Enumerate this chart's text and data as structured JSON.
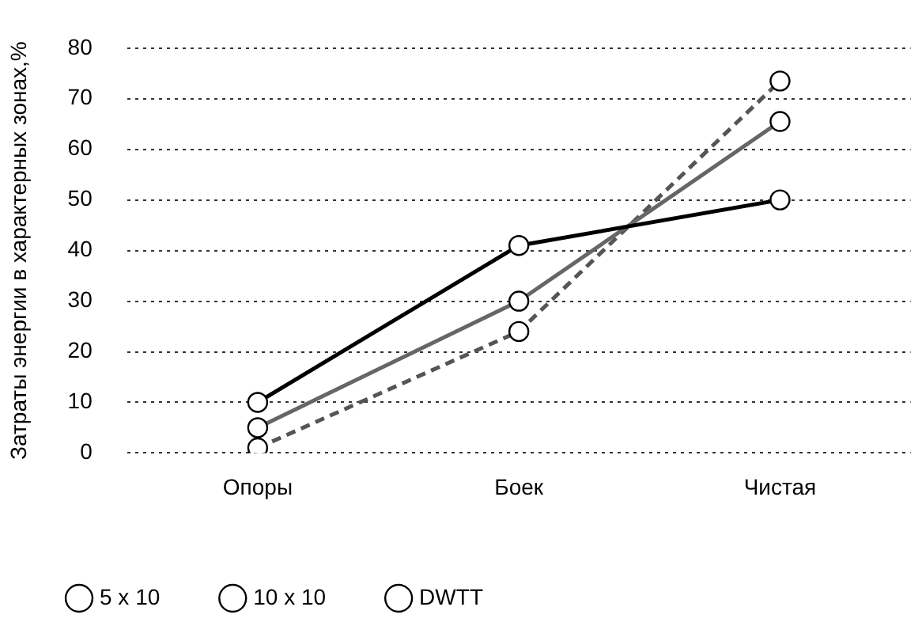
{
  "chart_data": {
    "type": "line",
    "ylabel": "Затраты энергии в характерных зонах,%",
    "categories": [
      "Опоры",
      "Боек",
      "Чистая"
    ],
    "series": [
      {
        "name": "5 x 10",
        "color": "#000000",
        "values": [
          10,
          41,
          50
        ],
        "line_style": "solid"
      },
      {
        "name": "10 x 10",
        "color": "#666666",
        "values": [
          5,
          30,
          65.5
        ],
        "line_style": "solid"
      },
      {
        "name": "DWTT",
        "color": "#555555",
        "values": [
          1,
          24,
          73.5
        ],
        "line_style": "dashed"
      }
    ],
    "ylim": [
      0,
      80
    ],
    "yticks": [
      0,
      10,
      20,
      30,
      40,
      50,
      60,
      70,
      80
    ],
    "grid": "y",
    "legend": "bottom",
    "marker": "circle"
  }
}
